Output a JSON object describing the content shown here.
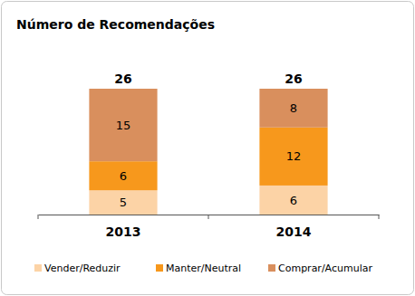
{
  "chart_data": {
    "type": "bar",
    "title": "Número de Recomendações",
    "categories": [
      "2013",
      "2014"
    ],
    "series": [
      {
        "name": "Vender/Reduzir",
        "color": "#fcd3a6",
        "values": [
          5,
          6
        ]
      },
      {
        "name": "Manter/Neutral",
        "color": "#f7981c",
        "values": [
          6,
          12
        ]
      },
      {
        "name": "Comprar/Acumular",
        "color": "#d98f5d",
        "values": [
          15,
          8
        ]
      }
    ],
    "totals": [
      26,
      26
    ],
    "stacked": true,
    "data_labels": true,
    "legend": "bottom",
    "tick_labels": "x",
    "grid": false
  }
}
